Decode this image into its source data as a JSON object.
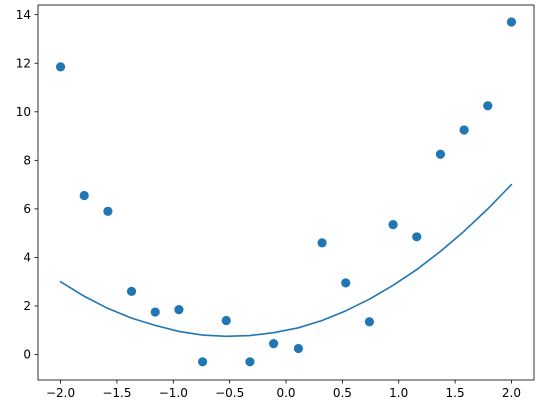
{
  "chart_data": {
    "type": "scatter",
    "xlim": [
      -2.2,
      2.2
    ],
    "ylim": [
      -1.05,
      14.4
    ],
    "x_ticks": [
      -2.0,
      -1.5,
      -1.0,
      -0.5,
      0.0,
      0.5,
      1.0,
      1.5,
      2.0
    ],
    "x_tick_labels": [
      "−2.0",
      "−1.5",
      "−1.0",
      "−0.5",
      "0.0",
      "0.5",
      "1.0",
      "1.5",
      "2.0"
    ],
    "y_ticks": [
      0,
      2,
      4,
      6,
      8,
      10,
      12,
      14
    ],
    "y_tick_labels": [
      "0",
      "2",
      "4",
      "6",
      "8",
      "10",
      "12",
      "14"
    ],
    "grid": false,
    "legend": "none",
    "series": [
      {
        "kind": "scatter",
        "color": "#1f77b4",
        "points": [
          {
            "x": -2.0,
            "y": 11.85
          },
          {
            "x": -1.79,
            "y": 6.55
          },
          {
            "x": -1.58,
            "y": 5.9
          },
          {
            "x": -1.37,
            "y": 2.6
          },
          {
            "x": -1.16,
            "y": 1.75
          },
          {
            "x": -0.95,
            "y": 1.85
          },
          {
            "x": -0.74,
            "y": -0.3
          },
          {
            "x": -0.53,
            "y": 1.4
          },
          {
            "x": -0.32,
            "y": -0.3
          },
          {
            "x": -0.11,
            "y": 0.45
          },
          {
            "x": 0.11,
            "y": 0.25
          },
          {
            "x": 0.32,
            "y": 4.6
          },
          {
            "x": 0.53,
            "y": 2.95
          },
          {
            "x": 0.74,
            "y": 1.35
          },
          {
            "x": 0.95,
            "y": 5.35
          },
          {
            "x": 1.16,
            "y": 4.85
          },
          {
            "x": 1.37,
            "y": 8.25
          },
          {
            "x": 1.58,
            "y": 9.25
          },
          {
            "x": 1.79,
            "y": 10.25
          },
          {
            "x": 2.0,
            "y": 13.7
          }
        ]
      },
      {
        "kind": "line",
        "color": "#1f77b4",
        "points": [
          {
            "x": -2.0,
            "y": 3.0
          },
          {
            "x": -1.79,
            "y": 2.4
          },
          {
            "x": -1.58,
            "y": 1.9
          },
          {
            "x": -1.37,
            "y": 1.5
          },
          {
            "x": -1.16,
            "y": 1.2
          },
          {
            "x": -0.95,
            "y": 0.95
          },
          {
            "x": -0.74,
            "y": 0.8
          },
          {
            "x": -0.53,
            "y": 0.75
          },
          {
            "x": -0.32,
            "y": 0.78
          },
          {
            "x": -0.11,
            "y": 0.9
          },
          {
            "x": 0.11,
            "y": 1.1
          },
          {
            "x": 0.32,
            "y": 1.4
          },
          {
            "x": 0.53,
            "y": 1.8
          },
          {
            "x": 0.74,
            "y": 2.28
          },
          {
            "x": 0.95,
            "y": 2.85
          },
          {
            "x": 1.16,
            "y": 3.5
          },
          {
            "x": 1.37,
            "y": 4.25
          },
          {
            "x": 1.58,
            "y": 5.08
          },
          {
            "x": 1.79,
            "y": 6.0
          },
          {
            "x": 2.0,
            "y": 7.0
          }
        ]
      }
    ]
  }
}
